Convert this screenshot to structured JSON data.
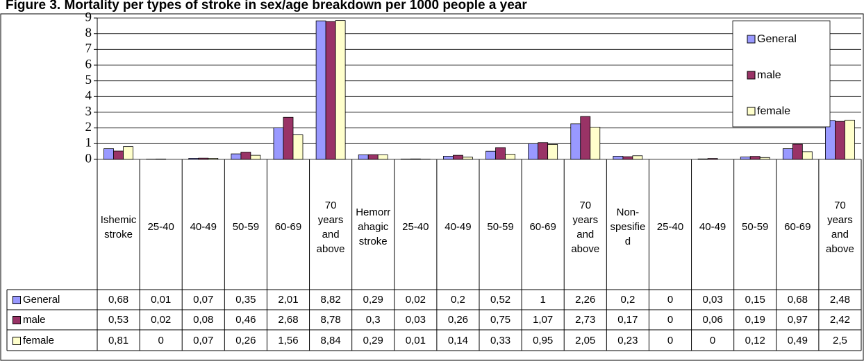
{
  "chart_data": {
    "type": "bar",
    "title": "Figure 3. Mortality per types of stroke in sex/age breakdown per 1000 people a year",
    "categories": [
      "Ishemic stroke",
      "25-40",
      "40-49",
      "50-59",
      "60-69",
      "70 years and above",
      "Hemorrahagic stroke",
      "25-40",
      "40-49",
      "50-59",
      "60-69",
      "70 years and above",
      "Non-spesified",
      "25-40",
      "40-49",
      "50-59",
      "60-69",
      "70 years and above"
    ],
    "series": [
      {
        "name": "General",
        "color": "#9999ff",
        "values": [
          0.68,
          0.01,
          0.07,
          0.35,
          2.01,
          8.82,
          0.29,
          0.02,
          0.2,
          0.52,
          1,
          2.26,
          0.2,
          0,
          0.03,
          0.15,
          0.68,
          2.48
        ],
        "value_labels": [
          "0,68",
          "0,01",
          "0,07",
          "0,35",
          "2,01",
          "8,82",
          "0,29",
          "0,02",
          "0,2",
          "0,52",
          "1",
          "2,26",
          "0,2",
          "0",
          "0,03",
          "0,15",
          "0,68",
          "2,48"
        ]
      },
      {
        "name": "male",
        "color": "#993366",
        "values": [
          0.53,
          0.02,
          0.08,
          0.46,
          2.68,
          8.78,
          0.3,
          0.03,
          0.26,
          0.75,
          1.07,
          2.73,
          0.17,
          0,
          0.06,
          0.19,
          0.97,
          2.42
        ],
        "value_labels": [
          "0,53",
          "0,02",
          "0,08",
          "0,46",
          "2,68",
          "8,78",
          "0,3",
          "0,03",
          "0,26",
          "0,75",
          "1,07",
          "2,73",
          "0,17",
          "0",
          "0,06",
          "0,19",
          "0,97",
          "2,42"
        ]
      },
      {
        "name": "female",
        "color": "#ffffcc",
        "values": [
          0.81,
          0,
          0.07,
          0.26,
          1.56,
          8.84,
          0.29,
          0.01,
          0.14,
          0.33,
          0.95,
          2.05,
          0.23,
          0,
          0,
          0.12,
          0.49,
          2.5
        ],
        "value_labels": [
          "0,81",
          "0",
          "0,07",
          "0,26",
          "1,56",
          "8,84",
          "0,29",
          "0,01",
          "0,14",
          "0,33",
          "0,95",
          "2,05",
          "0,23",
          "0",
          "0",
          "0,12",
          "0,49",
          "2,5"
        ]
      }
    ],
    "ylim": [
      0,
      9
    ],
    "yticks": [
      0,
      1,
      2,
      3,
      4,
      5,
      6,
      7,
      8,
      9
    ],
    "grid": true,
    "legend": "top-right"
  }
}
